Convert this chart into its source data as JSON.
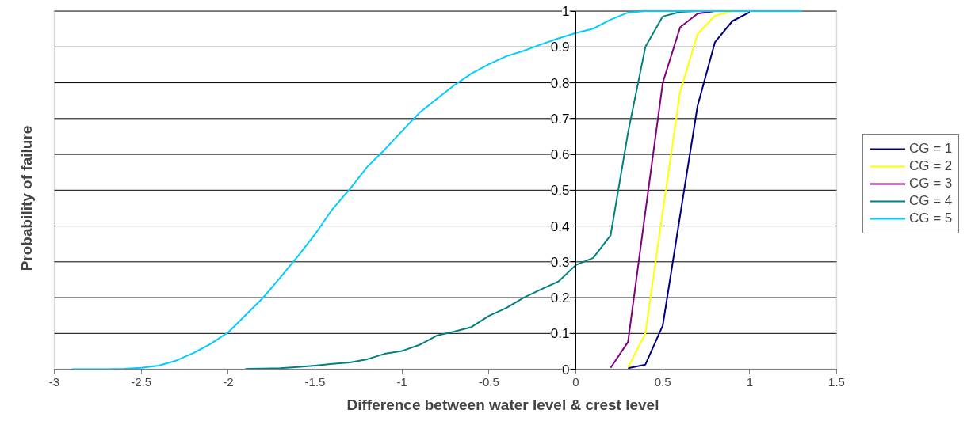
{
  "chart_data": {
    "type": "line",
    "xlabel": "Difference between water level & crest level",
    "ylabel": "Probability of failure",
    "x": [
      -2.9,
      -2.8,
      -2.7,
      -2.6,
      -2.5,
      -2.4,
      -2.3,
      -2.2,
      -2.1,
      -2.0,
      -1.9,
      -1.8,
      -1.7,
      -1.6,
      -1.5,
      -1.4,
      -1.3,
      -1.2,
      -1.1,
      -1.0,
      -0.9,
      -0.8,
      -0.7,
      -0.6,
      -0.5,
      -0.4,
      -0.3,
      -0.2,
      -0.1,
      0,
      0.1,
      0.2,
      0.3,
      0.4,
      0.5,
      0.6,
      0.7,
      0.8,
      0.9,
      1.0,
      1.1,
      1.2,
      1.3
    ],
    "series": [
      {
        "name": "CG = 1",
        "color": "#000080",
        "values": [
          null,
          null,
          null,
          null,
          null,
          null,
          null,
          null,
          null,
          null,
          null,
          null,
          null,
          null,
          null,
          null,
          null,
          null,
          null,
          null,
          null,
          null,
          null,
          null,
          null,
          null,
          null,
          null,
          null,
          null,
          null,
          null,
          0.003,
          0.013,
          0.122,
          0.43,
          0.735,
          0.913,
          0.972,
          0.997,
          null,
          null,
          null
        ]
      },
      {
        "name": "CG = 2",
        "color": "#ffff00",
        "values": [
          null,
          null,
          null,
          null,
          null,
          null,
          null,
          null,
          null,
          null,
          null,
          null,
          null,
          null,
          null,
          null,
          null,
          null,
          null,
          null,
          null,
          null,
          null,
          null,
          null,
          null,
          null,
          null,
          null,
          null,
          null,
          null,
          0.005,
          0.1,
          0.44,
          0.775,
          0.936,
          0.987,
          1,
          null,
          null,
          null,
          null
        ]
      },
      {
        "name": "CG = 3",
        "color": "#800080",
        "values": [
          null,
          null,
          null,
          null,
          null,
          null,
          null,
          null,
          null,
          null,
          null,
          null,
          null,
          null,
          null,
          null,
          null,
          null,
          null,
          null,
          null,
          null,
          null,
          null,
          null,
          null,
          null,
          null,
          null,
          null,
          null,
          0.004,
          0.076,
          0.44,
          0.8,
          0.955,
          0.993,
          1,
          null,
          null,
          null,
          null,
          null
        ]
      },
      {
        "name": "CG = 4",
        "color": "#008080",
        "values": [
          null,
          null,
          null,
          null,
          null,
          null,
          null,
          null,
          null,
          null,
          0.001,
          0.002,
          0.003,
          0.006,
          0.01,
          0.015,
          0.019,
          0.028,
          0.043,
          0.051,
          0.068,
          0.094,
          0.105,
          0.118,
          0.149,
          0.171,
          0.2,
          0.223,
          0.245,
          0.291,
          0.311,
          0.374,
          0.66,
          0.9,
          0.985,
          0.998,
          1,
          1,
          null,
          null,
          null,
          null,
          null
        ]
      },
      {
        "name": "CG = 5",
        "color": "#00ccff",
        "values": [
          0,
          0,
          0,
          0.001,
          0.004,
          0.01,
          0.024,
          0.045,
          0.071,
          0.103,
          0.151,
          0.199,
          0.256,
          0.315,
          0.377,
          0.447,
          0.503,
          0.565,
          0.613,
          0.665,
          0.716,
          0.755,
          0.793,
          0.826,
          0.852,
          0.874,
          0.889,
          0.907,
          0.924,
          0.939,
          0.951,
          0.976,
          0.996,
          1,
          1,
          1,
          1,
          1,
          1,
          1,
          1,
          1,
          1
        ]
      }
    ],
    "xlim": [
      -3,
      1.5
    ],
    "xticks": [
      -3,
      -2.5,
      -2,
      -1.5,
      -1,
      -0.5,
      0,
      0.5,
      1,
      1.5
    ],
    "ylim": [
      0,
      1
    ],
    "yticks": [
      0,
      0.1,
      0.2,
      0.3,
      0.4,
      0.5,
      0.6,
      0.7,
      0.8,
      0.9,
      1
    ],
    "grid": "y",
    "legend": "right",
    "marker": "none",
    "line_style": "solid"
  }
}
